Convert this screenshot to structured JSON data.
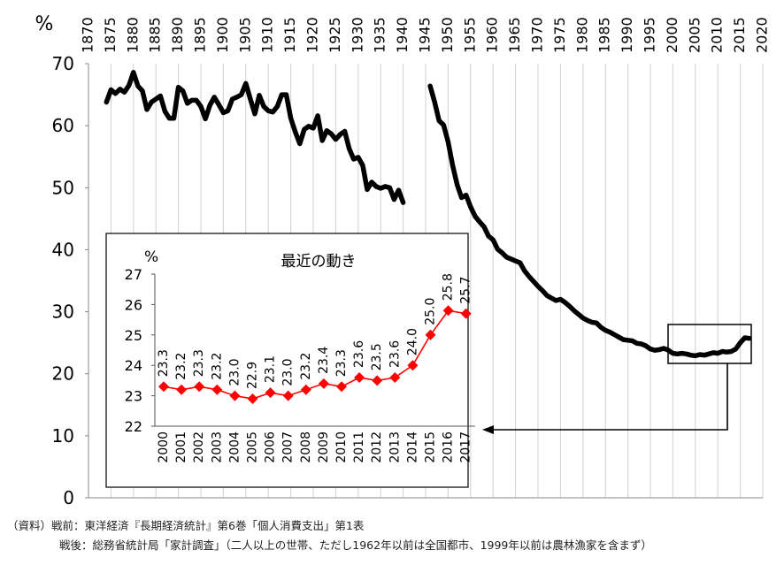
{
  "chart_data": [
    {
      "type": "line",
      "name": "main",
      "ylabel": "%",
      "ylim": [
        0,
        70
      ],
      "yticks": [
        0,
        10,
        20,
        30,
        40,
        50,
        60,
        70
      ],
      "xlim": [
        1870,
        2020
      ],
      "xticks": [
        1870,
        1875,
        1880,
        1885,
        1890,
        1895,
        1900,
        1905,
        1910,
        1915,
        1920,
        1925,
        1930,
        1935,
        1940,
        1945,
        1950,
        1955,
        1960,
        1965,
        1970,
        1975,
        1980,
        1985,
        1990,
        1995,
        2000,
        2005,
        2010,
        2015,
        2020
      ],
      "grid": "vertical",
      "color": "#000000",
      "series": [
        {
          "x": [
            1874,
            1875,
            1876,
            1877,
            1878,
            1879,
            1880,
            1881,
            1882,
            1883,
            1884,
            1885,
            1886,
            1887,
            1888,
            1889,
            1890,
            1891,
            1892,
            1893,
            1894,
            1895,
            1896,
            1897,
            1898,
            1899,
            1900,
            1901,
            1902,
            1903,
            1904,
            1905,
            1906,
            1907,
            1908,
            1909,
            1910,
            1911,
            1912,
            1913,
            1914,
            1915,
            1916,
            1917,
            1918,
            1919,
            1920,
            1921,
            1922,
            1923,
            1924,
            1925,
            1926,
            1927,
            1928,
            1929,
            1930,
            1931,
            1932,
            1933,
            1934,
            1935,
            1936,
            1937,
            1938,
            1939,
            1940
          ],
          "y": [
            63.8,
            65.8,
            65.2,
            65.9,
            65.4,
            66.5,
            68.6,
            66.4,
            65.6,
            62.6,
            63.8,
            64.3,
            64.8,
            62.3,
            61.2,
            61.2,
            66.2,
            65.6,
            63.6,
            64.1,
            64.1,
            63.1,
            61.1,
            63.3,
            64.6,
            63.4,
            62.1,
            62.4,
            64.3,
            64.6,
            65.0,
            66.8,
            64.3,
            61.9,
            64.9,
            63.1,
            62.4,
            62.2,
            63.1,
            65.0,
            65.0,
            61.2,
            59.0,
            57.1,
            59.4,
            59.9,
            59.6,
            61.6,
            57.6,
            59.2,
            58.7,
            57.8,
            58.6,
            59.1,
            56.3,
            54.6,
            54.9,
            53.6,
            49.7,
            50.9,
            50.2,
            49.9,
            50.2,
            50.0,
            48.1,
            49.6,
            47.6
          ]
        },
        {
          "x": [
            1946,
            1947,
            1948,
            1949,
            1950,
            1951,
            1952,
            1953,
            1954,
            1955,
            1956,
            1957,
            1958,
            1959,
            1960,
            1961,
            1962,
            1963,
            1964,
            1965,
            1966,
            1967,
            1968,
            1969,
            1970,
            1971,
            1972,
            1973,
            1974,
            1975,
            1976,
            1977,
            1978,
            1979,
            1980,
            1981,
            1982,
            1983,
            1984,
            1985,
            1986,
            1987,
            1988,
            1989,
            1990,
            1991,
            1992,
            1993,
            1994,
            1995,
            1996,
            1997,
            1998,
            1999,
            2000,
            2001,
            2002,
            2003,
            2004,
            2005,
            2006,
            2007,
            2008,
            2009,
            2010,
            2011,
            2012,
            2013,
            2014,
            2015,
            2016,
            2017
          ],
          "y": [
            66.4,
            63.8,
            60.8,
            60.1,
            57.4,
            53.6,
            50.5,
            48.4,
            48.8,
            46.9,
            45.4,
            44.5,
            43.7,
            42.2,
            41.6,
            40.1,
            39.5,
            38.8,
            38.5,
            38.2,
            37.9,
            36.6,
            35.7,
            34.9,
            34.1,
            33.4,
            32.6,
            32.2,
            31.8,
            32.0,
            31.5,
            30.9,
            30.2,
            29.6,
            29.0,
            28.6,
            28.3,
            28.2,
            27.5,
            27.0,
            26.7,
            26.3,
            25.9,
            25.5,
            25.4,
            25.3,
            24.9,
            24.8,
            24.5,
            24.0,
            23.8,
            23.9,
            24.1,
            23.8,
            23.3,
            23.2,
            23.3,
            23.2,
            23.0,
            22.9,
            23.1,
            23.0,
            23.2,
            23.4,
            23.3,
            23.6,
            23.5,
            23.6,
            24.0,
            25.0,
            25.8,
            25.7
          ]
        }
      ]
    },
    {
      "type": "line",
      "name": "inset",
      "title": "最近の動き",
      "ylabel": "%",
      "ylim": [
        22,
        27
      ],
      "yticks": [
        22,
        23,
        24,
        25,
        26,
        27
      ],
      "categories": [
        "2000",
        "2001",
        "2002",
        "2003",
        "2004",
        "2005",
        "2006",
        "2007",
        "2008",
        "2009",
        "2010",
        "2011",
        "2012",
        "2013",
        "2014",
        "2015",
        "2016",
        "2017"
      ],
      "values": [
        23.3,
        23.2,
        23.3,
        23.2,
        23.0,
        22.9,
        23.1,
        23.0,
        23.2,
        23.4,
        23.3,
        23.6,
        23.5,
        23.6,
        24.0,
        25.0,
        25.8,
        25.7
      ],
      "data_labels": [
        "23.3",
        "23.2",
        "23.3",
        "23.2",
        "23.0",
        "22.9",
        "23.1",
        "23.0",
        "23.2",
        "23.4",
        "23.3",
        "23.6",
        "23.5",
        "23.6",
        "24.0",
        "25.0",
        "25.8",
        "25.7"
      ],
      "color": "#ff0000",
      "marker": "diamond"
    }
  ],
  "source": {
    "line1": "（資料）戦前：東洋経済『長期経済統計』第6巻「個人消費支出」第1表",
    "line2": "戦後：総務省統計局「家計調査」（二人以上の世帯、ただし1962年以前は全国都市、1999年以前は農林漁家を含まず）"
  }
}
